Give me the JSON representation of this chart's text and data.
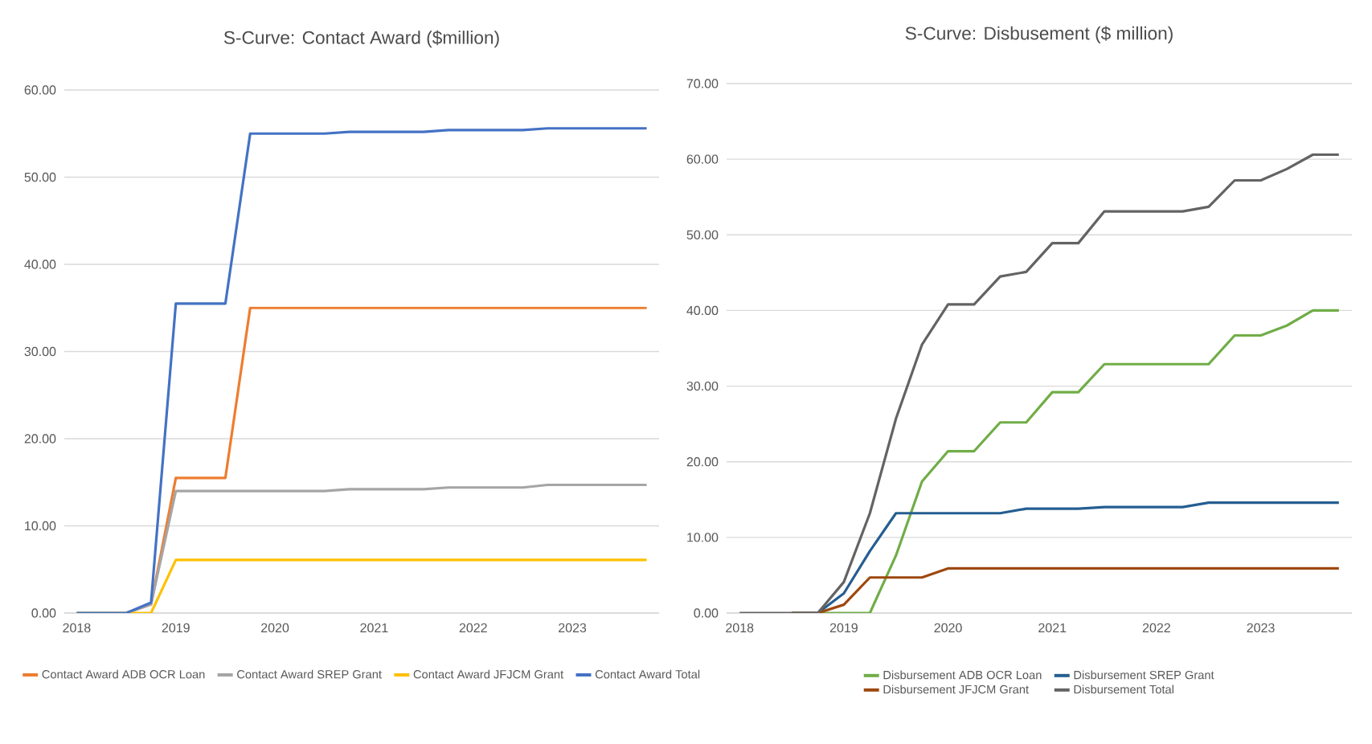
{
  "chart_data": [
    {
      "type": "line",
      "title": "S-Curve: Contact Award ($million)",
      "categories": [
        "2018",
        null,
        null,
        null,
        "2019",
        null,
        null,
        null,
        "2020",
        null,
        null,
        null,
        "2021",
        null,
        null,
        null,
        "2022",
        null,
        null,
        null,
        "2023",
        null,
        null,
        null
      ],
      "series": [
        {
          "name": "Contact Award ADB OCR Loan",
          "color": "#ed7d31",
          "values": [
            null,
            null,
            0,
            1.0,
            15.5,
            15.5,
            15.5,
            35,
            35,
            35,
            35,
            35,
            35,
            35,
            35,
            35,
            35,
            35,
            35,
            35,
            35,
            35,
            35,
            35
          ]
        },
        {
          "name": "Contact Award SREP Grant",
          "color": "#a5a5a5",
          "values": [
            0,
            0,
            0,
            1.0,
            14,
            14,
            14,
            14,
            14,
            14,
            14,
            14.2,
            14.2,
            14.2,
            14.2,
            14.4,
            14.4,
            14.4,
            14.4,
            14.7,
            14.7,
            14.7,
            14.7,
            14.7
          ]
        },
        {
          "name": "Contact Award JFJCM Grant",
          "color": "#ffc000",
          "values": [
            0,
            0,
            0,
            0,
            6.1,
            6.1,
            6.1,
            6.1,
            6.1,
            6.1,
            6.1,
            6.1,
            6.1,
            6.1,
            6.1,
            6.1,
            6.1,
            6.1,
            6.1,
            6.1,
            6.1,
            6.1,
            6.1,
            6.1
          ]
        },
        {
          "name": "Contact Award Total",
          "color": "#4472c4",
          "values": [
            0,
            0,
            0,
            1.2,
            35.5,
            35.5,
            35.5,
            55,
            55,
            55,
            55,
            55.2,
            55.2,
            55.2,
            55.2,
            55.4,
            55.4,
            55.4,
            55.4,
            55.6,
            55.6,
            55.6,
            55.6,
            55.6
          ]
        }
      ],
      "ylim": [
        0,
        60
      ],
      "yticks": [
        {
          "value": 0,
          "label": "0.00"
        },
        {
          "value": 10,
          "label": "10.00"
        },
        {
          "value": 20,
          "label": "20.00"
        },
        {
          "value": 30,
          "label": "30.00"
        },
        {
          "value": 40,
          "label": "40.00"
        },
        {
          "value": 50,
          "label": "50.00"
        },
        {
          "value": 60,
          "label": "60.00"
        }
      ],
      "grid": "y",
      "legend": "bottom",
      "marker": "none",
      "line_style": "solid"
    },
    {
      "type": "line",
      "title": "S-Curve: Disbusement ($ million)",
      "categories": [
        "2018",
        null,
        null,
        null,
        "2019",
        null,
        null,
        null,
        "2020",
        null,
        null,
        null,
        "2021",
        null,
        null,
        null,
        "2022",
        null,
        null,
        null,
        "2023",
        null,
        null,
        null
      ],
      "series": [
        {
          "name": "Disbursement ADB OCR Loan",
          "color": "#70ad47",
          "values": [
            null,
            null,
            0,
            0,
            0,
            0,
            7.6,
            17.4,
            21.4,
            21.4,
            25.2,
            25.2,
            29.2,
            29.2,
            32.9,
            32.9,
            32.9,
            32.9,
            32.9,
            36.7,
            36.7,
            38.0,
            40.0,
            40.0
          ]
        },
        {
          "name": "Disbursement SREP Grant",
          "color": "#255e91",
          "values": [
            null,
            null,
            0,
            0,
            2.6,
            8.2,
            13.2,
            13.2,
            13.2,
            13.2,
            13.2,
            13.8,
            13.8,
            13.8,
            14.0,
            14.0,
            14.0,
            14.0,
            14.6,
            14.6,
            14.6,
            14.6,
            14.6,
            14.6
          ]
        },
        {
          "name": "Disbursement JFJCM Grant",
          "color": "#9e480e",
          "values": [
            null,
            null,
            0,
            0,
            1.1,
            4.7,
            4.7,
            4.7,
            5.9,
            5.9,
            5.9,
            5.9,
            5.9,
            5.9,
            5.9,
            5.9,
            5.9,
            5.9,
            5.9,
            5.9,
            5.9,
            5.9,
            5.9,
            5.9
          ]
        },
        {
          "name": "Disbursement Total",
          "color": "#636363",
          "values": [
            0,
            0,
            0,
            0,
            4.1,
            13.2,
            25.7,
            35.5,
            40.8,
            40.8,
            44.5,
            45.1,
            48.9,
            48.9,
            53.1,
            53.1,
            53.1,
            53.1,
            53.7,
            57.2,
            57.2,
            58.7,
            60.6,
            60.6
          ]
        }
      ],
      "ylim": [
        0,
        70
      ],
      "yticks": [
        {
          "value": 0,
          "label": "0.00"
        },
        {
          "value": 10,
          "label": "10.00"
        },
        {
          "value": 20,
          "label": "20.00"
        },
        {
          "value": 30,
          "label": "30.00"
        },
        {
          "value": 40,
          "label": "40.00"
        },
        {
          "value": 50,
          "label": "50.00"
        },
        {
          "value": 60,
          "label": "60.00"
        },
        {
          "value": 70,
          "label": "70.00"
        }
      ],
      "grid": "y",
      "legend": "bottom",
      "marker": "none",
      "line_style": "solid"
    }
  ]
}
